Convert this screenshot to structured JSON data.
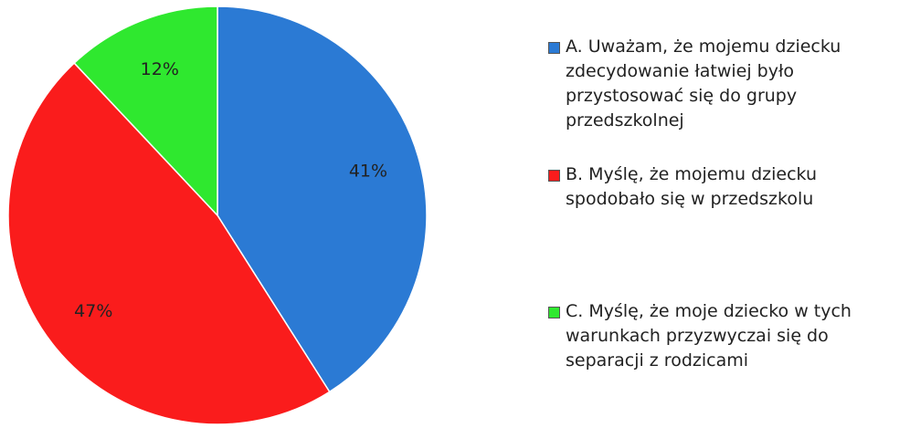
{
  "chart_data": {
    "type": "pie",
    "categories": [
      "A. Uważam, że mojemu dziecku zdecydowanie łatwiej było przystosować się do grupy przedszkolnej",
      "B. Myślę, że mojemu dziecku spodobało się w przedszkolu",
      "C. Myślę, że moje dziecko w tych warunkach przyzwyczai się do separacji z rodzicami"
    ],
    "values": [
      41,
      47,
      12
    ],
    "value_labels": [
      "41%",
      "47%",
      "12%"
    ],
    "colors": [
      "#2b7ad4",
      "#fa1c1c",
      "#2fe82f"
    ]
  }
}
